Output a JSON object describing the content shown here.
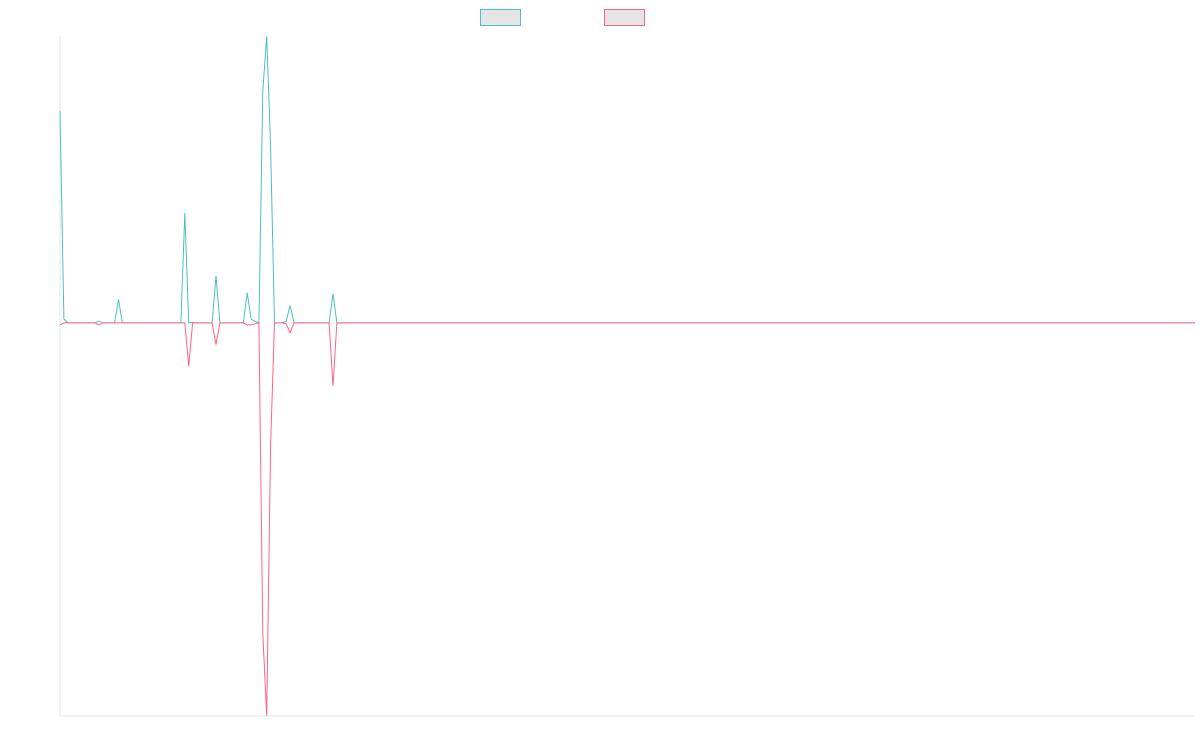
{
  "chart_data": {
    "type": "line",
    "title": "",
    "xlabel": "",
    "ylabel": "",
    "legend_position": "top-center",
    "grid": false,
    "ylim": [
      -1.0,
      0.73
    ],
    "series": [
      {
        "color": "#4bc0c0",
        "values": [
          0.54,
          0.01,
          0,
          0,
          0,
          0,
          0,
          0,
          0,
          0,
          0.005,
          0,
          0,
          0,
          0,
          0.06,
          0,
          0,
          0,
          0,
          0,
          0,
          0,
          0,
          0,
          0,
          0,
          0,
          0,
          0,
          0,
          0,
          0.28,
          0,
          0.002,
          0,
          0,
          0,
          0,
          0,
          0.12,
          0,
          0,
          0,
          0,
          0,
          0,
          0,
          0.077,
          0.01,
          0.004,
          0,
          0.59,
          0.73,
          0.45,
          0,
          0,
          0,
          0.004,
          0.044,
          0,
          0,
          0,
          0,
          0,
          0,
          0,
          0,
          0,
          0,
          0.074,
          0
        ]
      },
      {
        "color": "#ff6384",
        "values": [
          -0.005,
          0,
          0,
          0,
          0,
          0,
          0,
          0,
          0,
          0,
          -0.005,
          0,
          0,
          0,
          0,
          0,
          0,
          0,
          0,
          0,
          0,
          0,
          0,
          0,
          0,
          0,
          0,
          0,
          0,
          0,
          0,
          0,
          0,
          -0.11,
          0,
          0,
          0,
          0,
          0,
          0,
          -0.055,
          0,
          0,
          0,
          0,
          0,
          0,
          0,
          -0.005,
          -0.005,
          -0.002,
          0,
          -0.79,
          -1.0,
          -0.31,
          0,
          0,
          0,
          -0.002,
          -0.025,
          0,
          0,
          0,
          0,
          0,
          0,
          0,
          0,
          0,
          0,
          -0.16,
          0
        ]
      }
    ],
    "n_points": 292
  }
}
